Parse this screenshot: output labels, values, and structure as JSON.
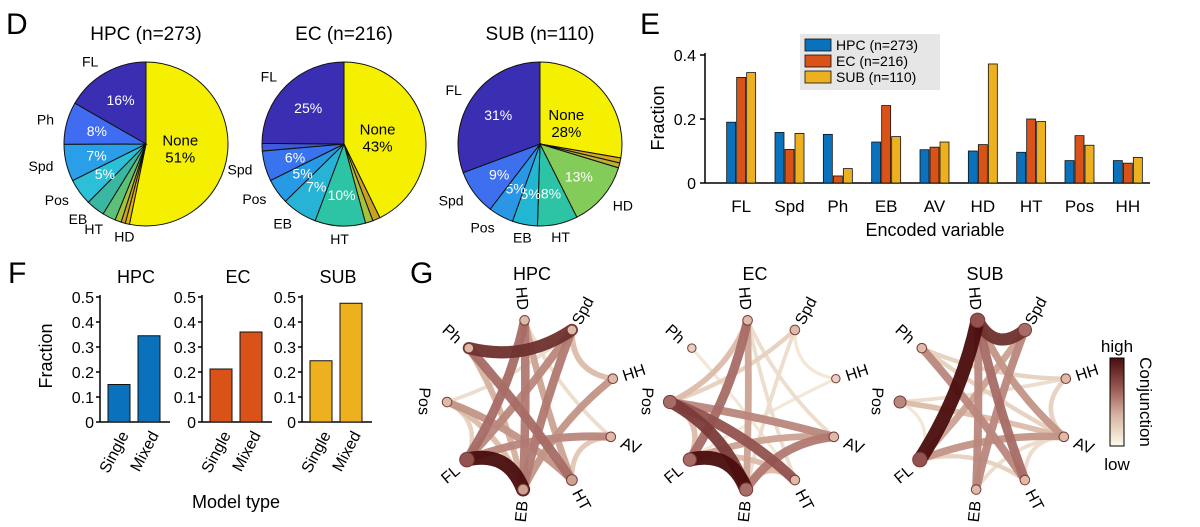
{
  "panels": {
    "D": {
      "letter": "D",
      "charts": [
        {
          "type": "pie",
          "title": "HPC (n=273)",
          "slices": [
            {
              "label": "None",
              "percent_label": "51%",
              "value": 51,
              "color": "#f5f000"
            },
            {
              "label": "HD",
              "percent_label": "",
              "value": 0.8,
              "color": "#e0b400"
            },
            {
              "label": "",
              "percent_label": "",
              "value": 0.8,
              "color": "#c9a21f"
            },
            {
              "label": "",
              "percent_label": "",
              "value": 1.2,
              "color": "#a6c23b"
            },
            {
              "label": "HT",
              "percent_label": "",
              "value": 2.5,
              "color": "#5bc07a"
            },
            {
              "label": "EB",
              "percent_label": "",
              "value": 3.5,
              "color": "#3ab7a0"
            },
            {
              "label": "Pos",
              "percent_label": "5%",
              "value": 5,
              "color": "#2bbfd8"
            },
            {
              "label": "Spd",
              "percent_label": "7%",
              "value": 7,
              "color": "#2a9ee8"
            },
            {
              "label": "Ph",
              "percent_label": "8%",
              "value": 8,
              "color": "#3f6cf0"
            },
            {
              "label": "FL",
              "percent_label": "16%",
              "value": 16,
              "color": "#3a2fb3"
            }
          ]
        },
        {
          "type": "pie",
          "title": "EC (n=216)",
          "slices": [
            {
              "label": "None",
              "percent_label": "43%",
              "value": 43,
              "color": "#f5f000"
            },
            {
              "label": "",
              "percent_label": "",
              "value": 1.5,
              "color": "#c9a21f"
            },
            {
              "label": "",
              "percent_label": "",
              "value": 1.5,
              "color": "#a6c23b"
            },
            {
              "label": "HT",
              "percent_label": "10%",
              "value": 10,
              "color": "#2cc4a4"
            },
            {
              "label": "EB",
              "percent_label": "7%",
              "value": 7,
              "color": "#26b3d6"
            },
            {
              "label": "Pos",
              "percent_label": "5%",
              "value": 5,
              "color": "#279ae6"
            },
            {
              "label": "Spd",
              "percent_label": "6%",
              "value": 6,
              "color": "#3a73ee"
            },
            {
              "label": "",
              "percent_label": "",
              "value": 1.5,
              "color": "#3f5bd8"
            },
            {
              "label": "FL",
              "percent_label": "25%",
              "value": 25,
              "color": "#3a2fb3"
            }
          ]
        },
        {
          "type": "pie",
          "title": "SUB (n=110)",
          "slices": [
            {
              "label": "None",
              "percent_label": "28%",
              "value": 28,
              "color": "#f5f000"
            },
            {
              "label": "",
              "percent_label": "",
              "value": 1,
              "color": "#d6a91e"
            },
            {
              "label": "",
              "percent_label": "",
              "value": 1,
              "color": "#bfb02e"
            },
            {
              "label": "HD",
              "percent_label": "13%",
              "value": 13,
              "color": "#84cc5a"
            },
            {
              "label": "HT",
              "percent_label": "8%",
              "value": 8,
              "color": "#2cc4a4"
            },
            {
              "label": "EB",
              "percent_label": "5%",
              "value": 5,
              "color": "#22b6d2"
            },
            {
              "label": "Pos",
              "percent_label": "5%",
              "value": 5,
              "color": "#2a96e6"
            },
            {
              "label": "Spd",
              "percent_label": "9%",
              "value": 9,
              "color": "#3d6fef"
            },
            {
              "label": "FL",
              "percent_label": "31%",
              "value": 31,
              "color": "#3a2fb3"
            }
          ]
        }
      ]
    },
    "E": {
      "letter": "E",
      "chart": {
        "type": "bar",
        "xlabel": "Encoded variable",
        "ylabel": "Fraction",
        "ylim": [
          0,
          0.4
        ],
        "yticks": [
          "0",
          "0.2",
          "0.4"
        ],
        "legend_position": "top-center",
        "categories": [
          "FL",
          "Spd",
          "Ph",
          "EB",
          "AV",
          "HD",
          "HT",
          "Pos",
          "HH"
        ],
        "series": [
          {
            "name": "HPC (n=273)",
            "color": "#0a72bd",
            "values": [
              0.19,
              0.158,
              0.152,
              0.128,
              0.104,
              0.1,
              0.096,
              0.07,
              0.07
            ]
          },
          {
            "name": "EC (n=216)",
            "color": "#d95319",
            "values": [
              0.33,
              0.105,
              0.022,
              0.242,
              0.112,
              0.12,
              0.2,
              0.148,
              0.062
            ]
          },
          {
            "name": "SUB (n=110)",
            "color": "#edb120",
            "values": [
              0.345,
              0.155,
              0.045,
              0.145,
              0.128,
              0.372,
              0.192,
              0.118,
              0.08
            ]
          }
        ]
      }
    },
    "F": {
      "letter": "F",
      "xlabel": "Model type",
      "ylabel": "Fraction",
      "ylim": [
        0,
        0.5
      ],
      "yticks": [
        "0",
        "0.1",
        "0.2",
        "0.3",
        "0.4",
        "0.5"
      ],
      "charts": [
        {
          "type": "bar",
          "title": "HPC",
          "color": "#0a72bd",
          "categories": [
            "Single",
            "Mixed"
          ],
          "values": [
            0.15,
            0.345
          ]
        },
        {
          "type": "bar",
          "title": "EC",
          "color": "#d95319",
          "categories": [
            "Single",
            "Mixed"
          ],
          "values": [
            0.212,
            0.36
          ]
        },
        {
          "type": "bar",
          "title": "SUB",
          "color": "#edb120",
          "categories": [
            "Single",
            "Mixed"
          ],
          "values": [
            0.245,
            0.475
          ]
        }
      ]
    },
    "G": {
      "letter": "G",
      "nodes": [
        "HD",
        "Spd",
        "HH",
        "AV",
        "HT",
        "EB",
        "FL",
        "Pos",
        "Ph"
      ],
      "colorbar": {
        "label": "Conjunction",
        "high": "high",
        "low": "low",
        "high_color": "#4a0d0d",
        "low_color": "#fdfbea"
      },
      "charts": [
        {
          "type": "chord",
          "title": "HPC",
          "links": [
            [
              "Ph",
              "Spd",
              0.85
            ],
            [
              "FL",
              "EB",
              1.0
            ],
            [
              "FL",
              "HD",
              0.6
            ],
            [
              "Ph",
              "HT",
              0.6
            ],
            [
              "EB",
              "HD",
              0.55
            ],
            [
              "Spd",
              "EB",
              0.55
            ],
            [
              "Spd",
              "FL",
              0.5
            ],
            [
              "FL",
              "AV",
              0.5
            ],
            [
              "EB",
              "HH",
              0.45
            ],
            [
              "Pos",
              "HT",
              0.45
            ],
            [
              "HD",
              "HT",
              0.4
            ],
            [
              "Ph",
              "EB",
              0.35
            ],
            [
              "Pos",
              "EB",
              0.3
            ],
            [
              "Spd",
              "HH",
              0.3
            ],
            [
              "HT",
              "AV",
              0.25
            ],
            [
              "Pos",
              "FL",
              0.2
            ],
            [
              "HD",
              "AV",
              0.15
            ],
            [
              "Pos",
              "Spd",
              0.15
            ]
          ],
          "node_sizes": [
            0.3,
            0.3,
            0.3,
            0.3,
            0.4,
            0.4,
            0.7,
            0.3,
            0.3
          ]
        },
        {
          "type": "chord",
          "title": "EC",
          "links": [
            [
              "FL",
              "EB",
              1.0
            ],
            [
              "Pos",
              "EB",
              0.8
            ],
            [
              "Pos",
              "HT",
              0.7
            ],
            [
              "FL",
              "HD",
              0.6
            ],
            [
              "EB",
              "AV",
              0.55
            ],
            [
              "Pos",
              "AV",
              0.5
            ],
            [
              "EB",
              "HD",
              0.4
            ],
            [
              "FL",
              "AV",
              0.4
            ],
            [
              "Pos",
              "HD",
              0.3
            ],
            [
              "EB",
              "HT",
              0.3
            ],
            [
              "FL",
              "HT",
              0.3
            ],
            [
              "Pos",
              "FL",
              0.3
            ],
            [
              "Pos",
              "Spd",
              0.2
            ],
            [
              "EB",
              "Spd",
              0.15
            ],
            [
              "HT",
              "HD",
              0.15
            ],
            [
              "HD",
              "AV",
              0.15
            ],
            [
              "Spd",
              "HH",
              0.1
            ],
            [
              "FL",
              "HH",
              0.1
            ],
            [
              "Ph",
              "HT",
              0.1
            ]
          ],
          "node_sizes": [
            0.3,
            0.3,
            0.2,
            0.3,
            0.3,
            0.6,
            0.6,
            0.6,
            0.2
          ]
        },
        {
          "type": "chord",
          "title": "SUB",
          "links": [
            [
              "HD",
              "FL",
              1.0
            ],
            [
              "HD",
              "Spd",
              0.85
            ],
            [
              "HD",
              "HT",
              0.6
            ],
            [
              "Ph",
              "HT",
              0.5
            ],
            [
              "HD",
              "EB",
              0.5
            ],
            [
              "Spd",
              "EB",
              0.5
            ],
            [
              "HD",
              "AV",
              0.45
            ],
            [
              "FL",
              "AV",
              0.45
            ],
            [
              "Spd",
              "FL",
              0.4
            ],
            [
              "Pos",
              "AV",
              0.3
            ],
            [
              "Ph",
              "AV",
              0.2
            ],
            [
              "HH",
              "AV",
              0.2
            ],
            [
              "Ph",
              "HH",
              0.2
            ],
            [
              "Pos",
              "HH",
              0.15
            ],
            [
              "HT",
              "AV",
              0.15
            ],
            [
              "EB",
              "AV",
              0.15
            ],
            [
              "Pos",
              "FL",
              0.1
            ],
            [
              "FL",
              "HT",
              0.2
            ]
          ],
          "node_sizes": [
            0.7,
            0.6,
            0.3,
            0.3,
            0.3,
            0.3,
            0.7,
            0.5,
            0.3
          ]
        }
      ]
    }
  }
}
